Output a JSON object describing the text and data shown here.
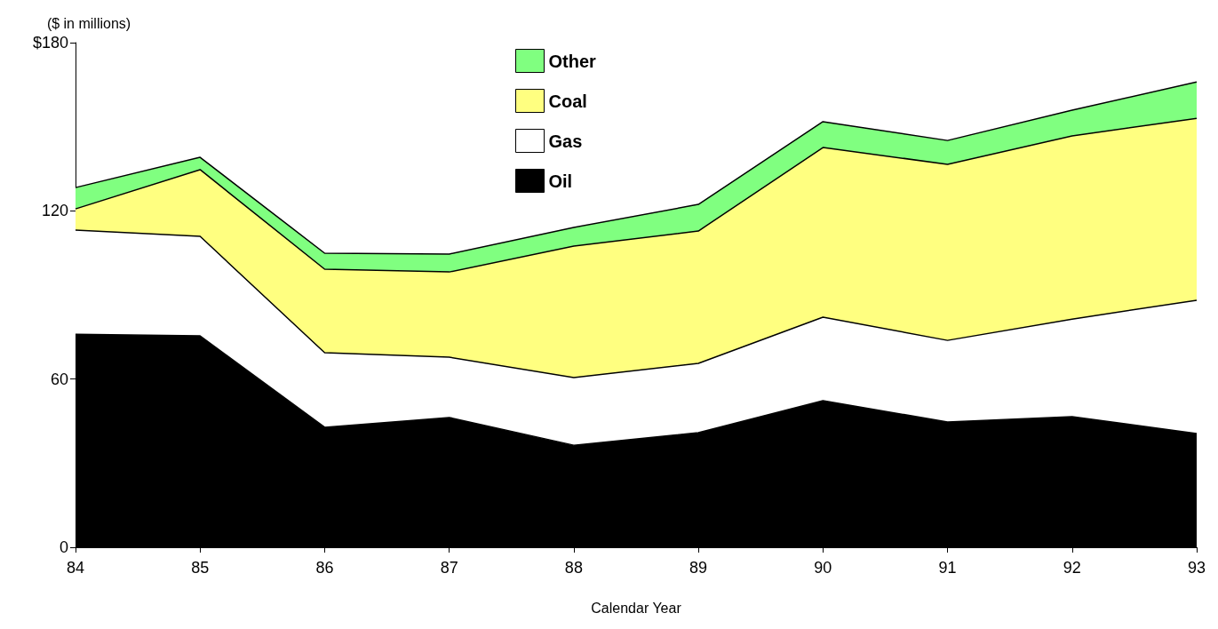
{
  "chart_data": {
    "type": "area",
    "stacked": true,
    "ylabel": "($ in millions)",
    "xlabel": "Calendar Year",
    "categories": [
      "84",
      "85",
      "86",
      "87",
      "88",
      "89",
      "90",
      "91",
      "92",
      "93"
    ],
    "series": [
      {
        "name": "Oil",
        "color": "#000000",
        "values": [
          76.0,
          75.4,
          42.8,
          46.3,
          36.4,
          40.9,
          52.3,
          44.7,
          46.6,
          40.6
        ]
      },
      {
        "name": "Gas",
        "color": "#ffffff",
        "values": [
          37.1,
          35.5,
          26.6,
          21.5,
          24.1,
          24.7,
          29.8,
          29.1,
          34.8,
          47.5
        ]
      },
      {
        "name": "Coal",
        "color": "#ffff80",
        "values": [
          7.6,
          23.8,
          29.8,
          30.4,
          46.9,
          47.2,
          60.5,
          62.8,
          65.3,
          64.9
        ]
      },
      {
        "name": "Other",
        "color": "#80ff80",
        "values": [
          7.6,
          4.4,
          5.7,
          6.4,
          6.7,
          9.5,
          9.2,
          8.5,
          9.2,
          13.0
        ]
      }
    ],
    "ylim": [
      0,
      180
    ],
    "yticks": [
      0,
      60,
      120,
      {
        "value": 180,
        "label": "$180"
      }
    ],
    "grid": false,
    "legend": "top",
    "marker": "none",
    "line_style": "solid"
  }
}
